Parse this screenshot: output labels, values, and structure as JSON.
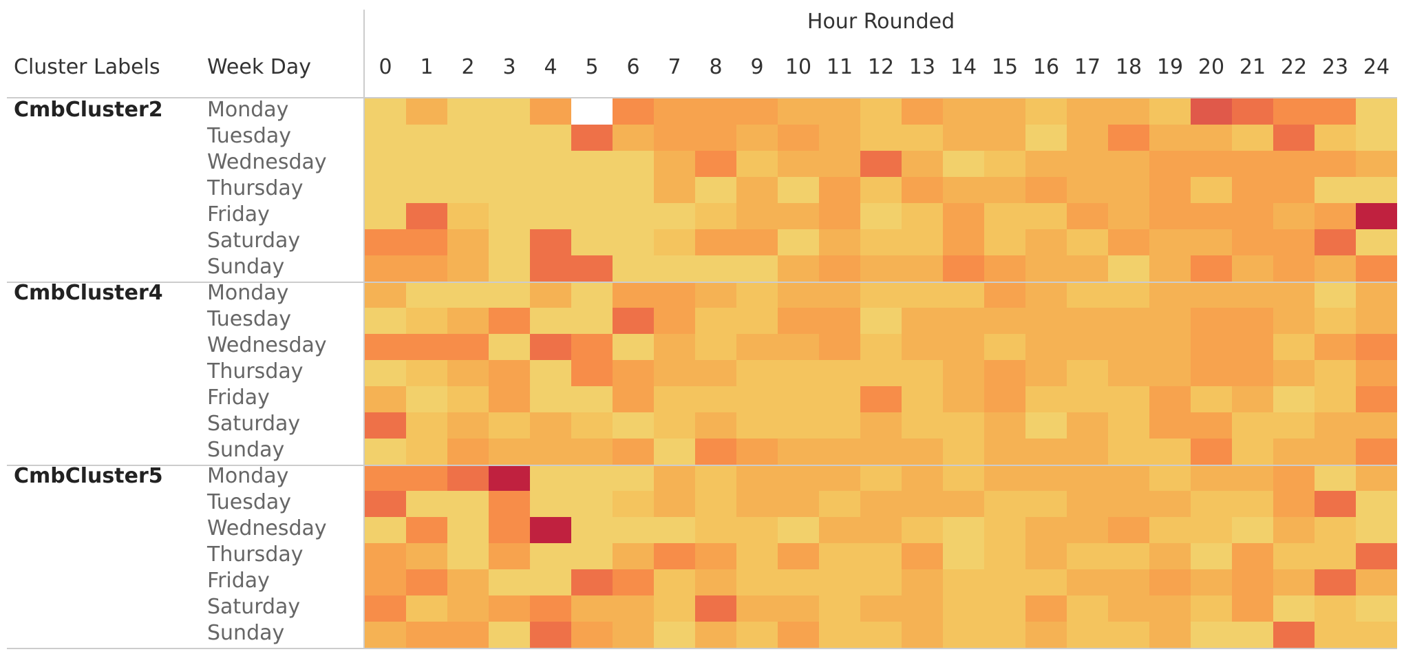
{
  "chart_data": {
    "type": "heatmap",
    "column_title": "Hour Rounded",
    "row_headers": [
      "Cluster Labels",
      "Week Day"
    ],
    "hours": [
      "0",
      "1",
      "2",
      "3",
      "4",
      "5",
      "6",
      "7",
      "8",
      "9",
      "10",
      "11",
      "12",
      "13",
      "14",
      "15",
      "16",
      "17",
      "18",
      "19",
      "20",
      "21",
      "22",
      "23",
      "24"
    ],
    "clusters": [
      {
        "label": "CmbCluster2",
        "rows": [
          {
            "day": "Monday",
            "values": [
              1,
              3,
              1,
              1,
              4,
              null,
              5,
              4,
              4,
              4,
              3,
              3,
              2,
              4,
              3,
              3,
              2,
              3,
              3,
              2,
              7,
              6,
              5,
              5,
              1
            ]
          },
          {
            "day": "Tuesday",
            "values": [
              1,
              1,
              1,
              1,
              1,
              6,
              3,
              4,
              4,
              3,
              4,
              3,
              2,
              2,
              3,
              3,
              1,
              3,
              5,
              3,
              3,
              2,
              6,
              2,
              1
            ]
          },
          {
            "day": "Wednesday",
            "values": [
              1,
              1,
              1,
              1,
              1,
              1,
              1,
              3,
              5,
              2,
              3,
              3,
              6,
              3,
              1,
              2,
              3,
              3,
              3,
              4,
              4,
              4,
              4,
              4,
              3
            ]
          },
          {
            "day": "Thursday",
            "values": [
              1,
              1,
              1,
              1,
              1,
              1,
              1,
              3,
              1,
              3,
              1,
              4,
              2,
              4,
              3,
              3,
              4,
              3,
              3,
              4,
              2,
              4,
              4,
              1,
              1
            ]
          },
          {
            "day": "Friday",
            "values": [
              1,
              6,
              2,
              1,
              1,
              1,
              1,
              1,
              2,
              3,
              3,
              4,
              1,
              2,
              4,
              2,
              2,
              4,
              3,
              4,
              4,
              4,
              3,
              4,
              8
            ]
          },
          {
            "day": "Saturday",
            "values": [
              5,
              5,
              3,
              1,
              6,
              1,
              1,
              2,
              4,
              4,
              1,
              3,
              2,
              2,
              4,
              2,
              3,
              2,
              4,
              3,
              3,
              4,
              4,
              6,
              1
            ]
          },
          {
            "day": "Sunday",
            "values": [
              4,
              4,
              3,
              1,
              6,
              6,
              1,
              1,
              1,
              1,
              3,
              4,
              3,
              3,
              5,
              4,
              3,
              3,
              1,
              3,
              5,
              3,
              4,
              3,
              5
            ]
          }
        ]
      },
      {
        "label": "CmbCluster4",
        "rows": [
          {
            "day": "Monday",
            "values": [
              3,
              1,
              1,
              1,
              3,
              1,
              4,
              4,
              3,
              2,
              3,
              3,
              2,
              2,
              2,
              4,
              3,
              2,
              2,
              3,
              3,
              3,
              3,
              1,
              3
            ]
          },
          {
            "day": "Tuesday",
            "values": [
              1,
              2,
              3,
              5,
              1,
              1,
              6,
              4,
              2,
              2,
              4,
              4,
              1,
              3,
              3,
              3,
              3,
              3,
              3,
              3,
              4,
              4,
              3,
              2,
              3
            ]
          },
          {
            "day": "Wednesday",
            "values": [
              5,
              5,
              5,
              1,
              6,
              5,
              1,
              3,
              2,
              3,
              3,
              4,
              2,
              3,
              3,
              2,
              3,
              3,
              3,
              3,
              4,
              4,
              2,
              4,
              5
            ]
          },
          {
            "day": "Thursday",
            "values": [
              1,
              2,
              3,
              4,
              1,
              5,
              4,
              3,
              3,
              2,
              2,
              2,
              2,
              2,
              3,
              4,
              3,
              2,
              3,
              3,
              4,
              4,
              3,
              2,
              4
            ]
          },
          {
            "day": "Friday",
            "values": [
              3,
              1,
              2,
              4,
              1,
              1,
              4,
              2,
              2,
              2,
              2,
              2,
              5,
              2,
              3,
              4,
              2,
              2,
              2,
              4,
              2,
              3,
              1,
              2,
              5
            ]
          },
          {
            "day": "Saturday",
            "values": [
              6,
              2,
              3,
              2,
              3,
              2,
              1,
              2,
              3,
              2,
              2,
              2,
              3,
              2,
              2,
              3,
              1,
              3,
              2,
              4,
              4,
              2,
              2,
              3,
              3
            ]
          },
          {
            "day": "Sunday",
            "values": [
              1,
              2,
              4,
              3,
              3,
              3,
              4,
              1,
              5,
              4,
              3,
              3,
              3,
              3,
              2,
              3,
              3,
              3,
              2,
              2,
              5,
              2,
              3,
              3,
              5
            ]
          }
        ]
      },
      {
        "label": "CmbCluster5",
        "rows": [
          {
            "day": "Monday",
            "values": [
              5,
              5,
              6,
              8,
              1,
              1,
              1,
              3,
              2,
              3,
              3,
              3,
              2,
              3,
              2,
              3,
              3,
              3,
              3,
              2,
              3,
              3,
              4,
              1,
              3
            ]
          },
          {
            "day": "Tuesday",
            "values": [
              6,
              1,
              1,
              5,
              1,
              1,
              2,
              3,
              2,
              3,
              3,
              2,
              3,
              3,
              3,
              2,
              2,
              3,
              3,
              3,
              2,
              2,
              4,
              6,
              1
            ]
          },
          {
            "day": "Wednesday",
            "values": [
              1,
              5,
              1,
              5,
              8,
              1,
              1,
              1,
              2,
              2,
              1,
              3,
              3,
              2,
              1,
              2,
              3,
              3,
              4,
              2,
              2,
              1,
              3,
              2,
              1
            ]
          },
          {
            "day": "Thursday",
            "values": [
              4,
              3,
              1,
              4,
              1,
              1,
              3,
              5,
              4,
              2,
              4,
              2,
              2,
              4,
              1,
              2,
              3,
              2,
              2,
              3,
              1,
              4,
              2,
              2,
              6
            ]
          },
          {
            "day": "Friday",
            "values": [
              4,
              5,
              3,
              1,
              1,
              6,
              5,
              2,
              3,
              2,
              2,
              2,
              2,
              3,
              2,
              2,
              2,
              3,
              3,
              4,
              3,
              4,
              3,
              6,
              3
            ]
          },
          {
            "day": "Saturday",
            "values": [
              5,
              2,
              3,
              4,
              5,
              3,
              3,
              2,
              6,
              3,
              3,
              2,
              3,
              3,
              2,
              2,
              4,
              2,
              3,
              3,
              2,
              4,
              1,
              2,
              1
            ]
          },
          {
            "day": "Sunday",
            "values": [
              3,
              4,
              4,
              1,
              6,
              4,
              3,
              1,
              3,
              2,
              4,
              2,
              2,
              3,
              2,
              2,
              3,
              2,
              2,
              3,
              1,
              1,
              6,
              2,
              2
            ]
          }
        ]
      }
    ],
    "value_scale": {
      "null": "#ffffff",
      "1": "#f2d06b",
      "2": "#f4c45e",
      "3": "#f5b254",
      "4": "#f7a34e",
      "5": "#f78d49",
      "6": "#ee7148",
      "7": "#e0594a",
      "8": "#c0213f"
    }
  }
}
